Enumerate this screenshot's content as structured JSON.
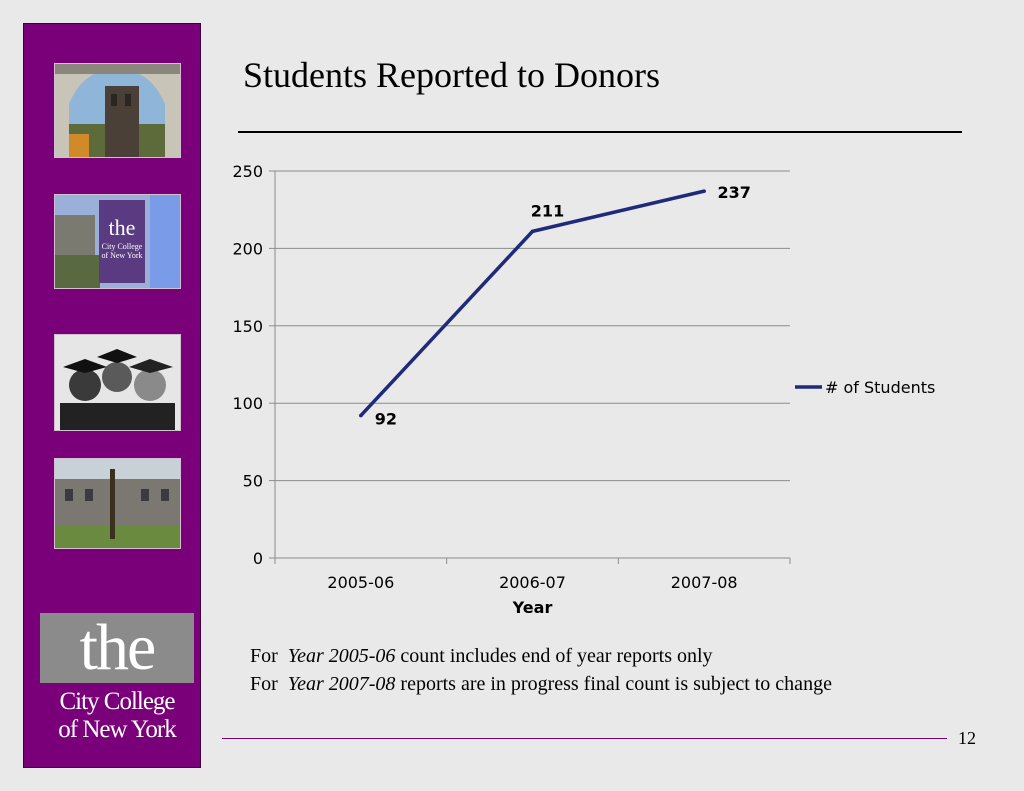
{
  "slide": {
    "title": "Students Reported to Donors",
    "page_number": "12"
  },
  "notes": [
    {
      "prefix": "For",
      "year": "Year 2005-06",
      "text": "count includes end of year reports only"
    },
    {
      "prefix": "For",
      "year": "Year 2007-08",
      "text": "reports are in progress final count is subject to change"
    }
  ],
  "logo": {
    "word": "the",
    "line1": "City College",
    "line2": "of New York"
  },
  "colors": {
    "sidebar": "#7a007a",
    "series": "#1f2a7a"
  },
  "chart_data": {
    "type": "line",
    "title": "",
    "xlabel": "Year",
    "ylabel": "",
    "categories": [
      "2005-06",
      "2006-07",
      "2007-08"
    ],
    "series": [
      {
        "name": "# of Students",
        "values": [
          92,
          211,
          237
        ]
      }
    ],
    "ylim": [
      0,
      250
    ],
    "yticks": [
      0,
      50,
      100,
      150,
      200,
      250
    ],
    "grid": true,
    "legend": "right",
    "data_labels": true
  }
}
